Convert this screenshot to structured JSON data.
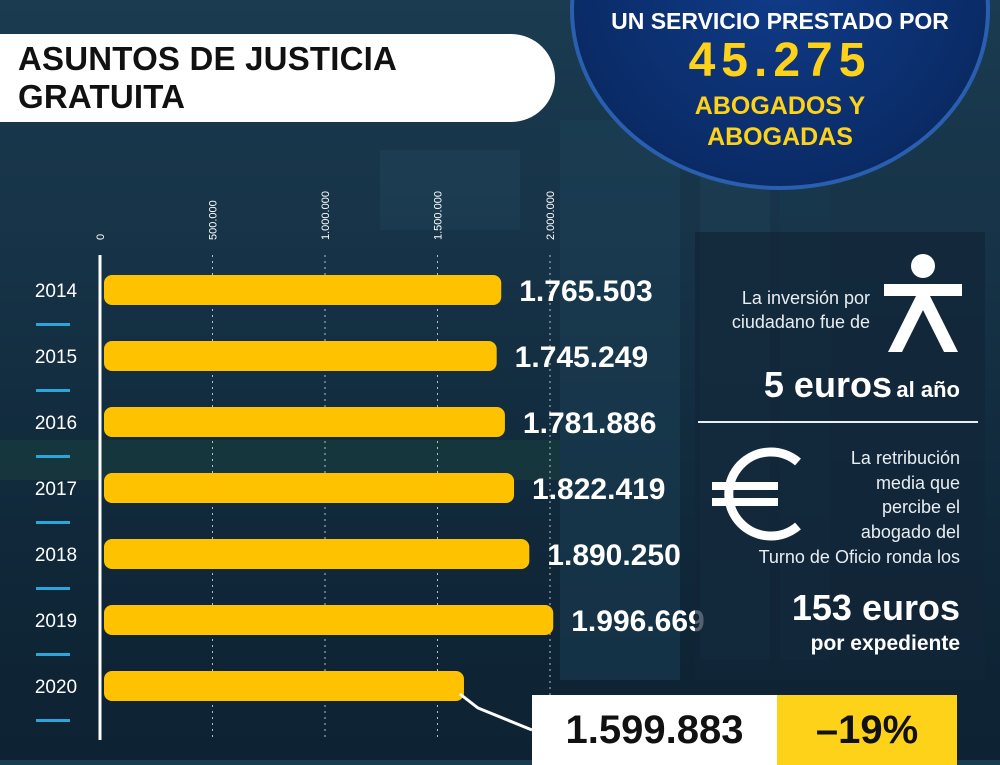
{
  "title": "ASUNTOS DE JUSTICIA GRATUITA",
  "badge": {
    "line1": "UN SERVICIO PRESTADO POR",
    "number": "45.275",
    "line2": "ABOGADOS Y",
    "line3": "ABOGADAS"
  },
  "chart_data": {
    "type": "bar",
    "orientation": "horizontal",
    "categories": [
      "2014",
      "2015",
      "2016",
      "2017",
      "2018",
      "2019",
      "2020"
    ],
    "values": [
      1765503,
      1745249,
      1781886,
      1822419,
      1890250,
      1996669,
      1599883
    ],
    "value_labels": [
      "1.765.503",
      "1.745.249",
      "1.781.886",
      "1.822.419",
      "1.890.250",
      "1.996.669",
      "1.599.883"
    ],
    "axis_ticks": [
      0,
      500000,
      1000000,
      1500000,
      2000000
    ],
    "axis_tick_labels": [
      "0",
      "500.000",
      "1.000.000",
      "1.500.000",
      "2.000.000"
    ],
    "xlim": [
      0,
      2000000
    ],
    "grid": true,
    "bar_color": "#ffc200",
    "label_color": "#ffffff"
  },
  "total": {
    "value": "1.599.883",
    "change": "–19%"
  },
  "info": {
    "investment_text_line1": "La inversión por",
    "investment_text_line2": "ciudadano fue de",
    "investment_value": "5 euros",
    "investment_unit": "al año",
    "retribution_lines": [
      "La retribución",
      "media que",
      "percibe el",
      "abogado del",
      "Turno de Oficio ronda los"
    ],
    "retribution_value": "153 euros",
    "retribution_unit": "por expediente",
    "person_icon": "person-icon",
    "euro_icon": "euro-icon"
  },
  "colors": {
    "accent_yellow": "#ffc200",
    "badge_blue": "#0a2b66",
    "background": "#163246"
  }
}
